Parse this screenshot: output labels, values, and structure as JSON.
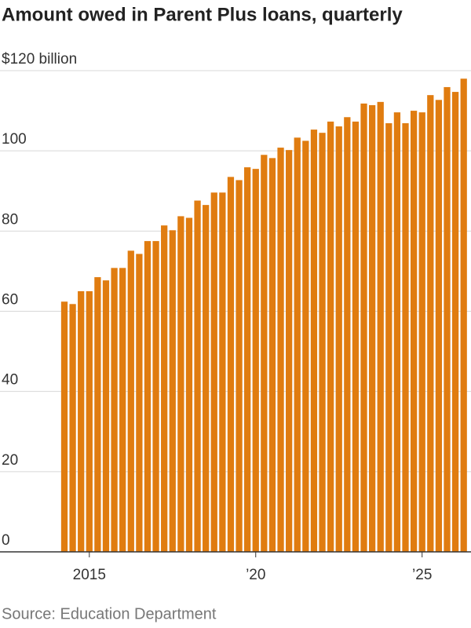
{
  "chart_data": {
    "type": "bar",
    "title": "Amount owed in Parent Plus loans, quarterly",
    "source": "Source: Education Department",
    "categories": [
      null,
      null,
      null,
      "2015",
      null,
      null,
      null,
      null,
      null,
      null,
      null,
      null,
      null,
      null,
      null,
      null,
      null,
      null,
      null,
      null,
      null,
      null,
      null,
      "’20",
      null,
      null,
      null,
      null,
      null,
      null,
      null,
      null,
      null,
      null,
      null,
      null,
      null,
      null,
      null,
      null,
      null,
      null,
      null,
      "’25",
      null,
      null,
      null,
      null,
      null
    ],
    "values": [
      62.4,
      61.8,
      65,
      65,
      68.5,
      67.7,
      70.8,
      70.8,
      75.1,
      74.3,
      77.5,
      77.5,
      81.4,
      80.2,
      83.7,
      83.3,
      87.6,
      86.5,
      89.6,
      89.6,
      93.5,
      92.7,
      95.9,
      95.5,
      99,
      98.2,
      100.8,
      100.2,
      103.3,
      102.5,
      105.3,
      104.5,
      107.3,
      106.1,
      108.4,
      107.3,
      111.8,
      111.4,
      112.2,
      106.9,
      109.6,
      106.9,
      110,
      109.6,
      113.9,
      112.7,
      115.9,
      114.7,
      118
    ],
    "color": "#e07c10",
    "ylim": [
      0,
      120
    ],
    "yticks": [
      0,
      20,
      40,
      60,
      80,
      100,
      {
        "value": 120,
        "label": "$120 billion"
      }
    ],
    "grid": true
  }
}
